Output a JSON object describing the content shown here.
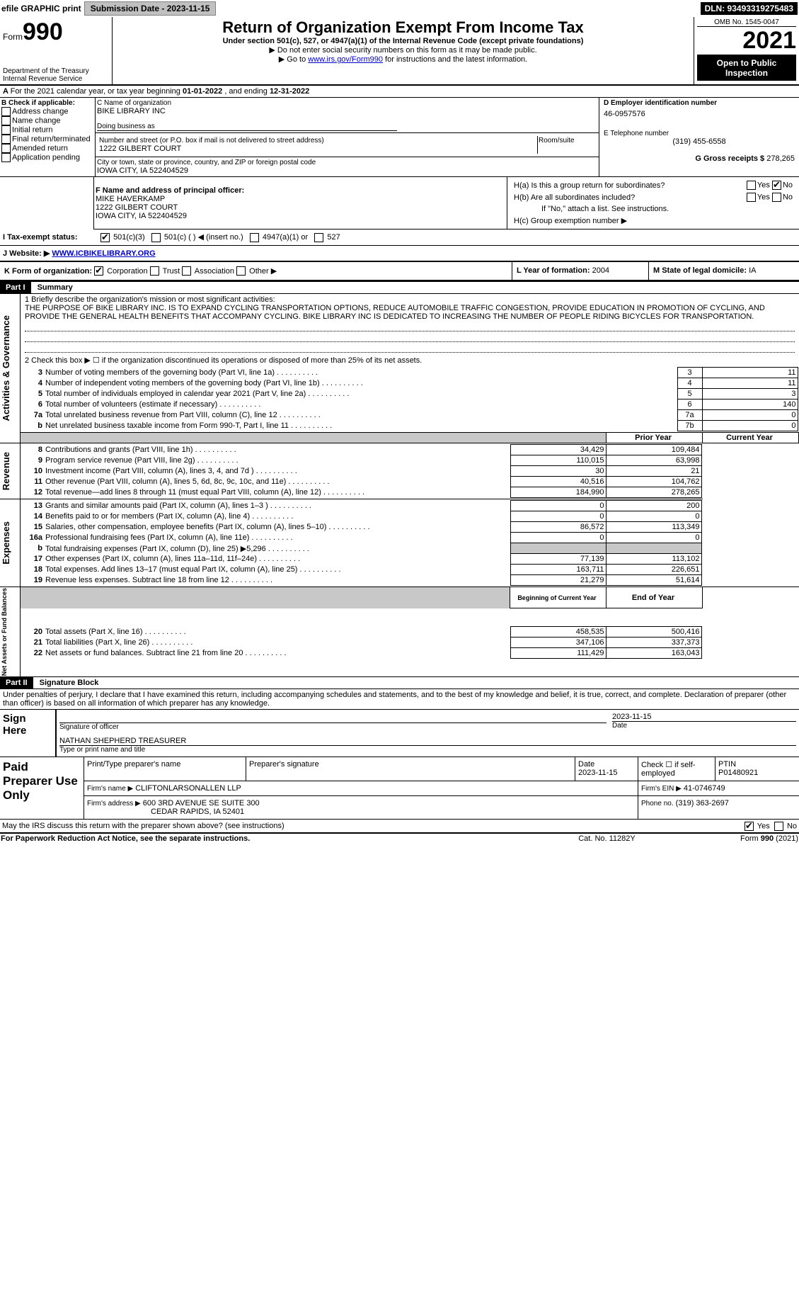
{
  "top": {
    "efile": "efile GRAPHIC print",
    "submission_label": "Submission Date - 2023-11-15",
    "dln_label": "DLN: 93493319275483"
  },
  "header": {
    "form_word": "Form",
    "form_num": "990",
    "title": "Return of Organization Exempt From Income Tax",
    "subtitle": "Under section 501(c), 527, or 4947(a)(1) of the Internal Revenue Code (except private foundations)",
    "note1": "▶ Do not enter social security numbers on this form as it may be made public.",
    "note2_pre": "▶ Go to ",
    "note2_link": "www.irs.gov/Form990",
    "note2_post": " for instructions and the latest information.",
    "dept": "Department of the Treasury",
    "irs": "Internal Revenue Service",
    "omb": "OMB No. 1545-0047",
    "year": "2021",
    "open": "Open to Public Inspection"
  },
  "a_line": {
    "pre": "For the 2021 calendar year, or tax year beginning ",
    "begin": "01-01-2022",
    "mid": " , and ending ",
    "end": "12-31-2022"
  },
  "b": {
    "label": "B Check if applicable:",
    "items": [
      "Address change",
      "Name change",
      "Initial return",
      "Final return/terminated",
      "Amended return",
      "Application pending"
    ]
  },
  "c": {
    "name_label": "C Name of organization",
    "name_val": "BIKE LIBRARY INC",
    "dba_label": "Doing business as",
    "addr_label": "Number and street (or P.O. box if mail is not delivered to street address)",
    "room_label": "Room/suite",
    "addr_val": "1222 GILBERT COURT",
    "city_label": "City or town, state or province, country, and ZIP or foreign postal code",
    "city_val": "IOWA CITY, IA  522404529"
  },
  "d": {
    "label": "D Employer identification number",
    "val": "46-0957576"
  },
  "e": {
    "label": "E Telephone number",
    "val": "(319) 455-6558"
  },
  "g": {
    "label": "G Gross receipts $",
    "val": "278,265"
  },
  "f": {
    "label": "F Name and address of principal officer:",
    "name": "MIKE HAVERKAMP",
    "addr1": "1222 GILBERT COURT",
    "addr2": "IOWA CITY, IA  522404529"
  },
  "h": {
    "a": "H(a)  Is this a group return for subordinates?",
    "b": "H(b)  Are all subordinates included?",
    "b_note": "If \"No,\" attach a list. See instructions.",
    "c": "H(c)  Group exemption number ▶",
    "yes": "Yes",
    "no": "No"
  },
  "i": {
    "label": "I Tax-exempt status:",
    "opt1": "501(c)(3)",
    "opt2": "501(c) ( ) ◀ (insert no.)",
    "opt3": "4947(a)(1) or",
    "opt4": "527"
  },
  "j": {
    "label": "J    Website: ▶",
    "val": "WWW.ICBIKELIBRARY.ORG"
  },
  "k": {
    "label": "K Form of organization:",
    "o1": "Corporation",
    "o2": "Trust",
    "o3": "Association",
    "o4": "Other ▶"
  },
  "l": {
    "label": "L Year of formation:",
    "val": "2004"
  },
  "m": {
    "label": "M State of legal domicile:",
    "val": "IA"
  },
  "part1": {
    "tag": "Part I",
    "title": "Summary",
    "q1": "1 Briefly describe the organization's mission or most significant activities:",
    "mission": "THE PURPOSE OF BIKE LIBRARY INC. IS TO EXPAND CYCLING TRANSPORTATION OPTIONS, REDUCE AUTOMOBILE TRAFFIC CONGESTION, PROVIDE EDUCATION IN PROMOTION OF CYCLING, AND PROVIDE THE GENERAL HEALTH BENEFITS THAT ACCOMPANY CYCLING. BIKE LIBRARY INC IS DEDICATED TO INCREASING THE NUMBER OF PEOPLE RIDING BICYCLES FOR TRANSPORTATION.",
    "q2": "2  Check this box ▶ ☐ if the organization discontinued its operations or disposed of more than 25% of its net assets.",
    "side1": "Activities & Governance",
    "rows_ag": [
      {
        "n": "3",
        "t": "Number of voting members of the governing body (Part VI, line 1a)",
        "b": "3",
        "v": "11"
      },
      {
        "n": "4",
        "t": "Number of independent voting members of the governing body (Part VI, line 1b)",
        "b": "4",
        "v": "11"
      },
      {
        "n": "5",
        "t": "Total number of individuals employed in calendar year 2021 (Part V, line 2a)",
        "b": "5",
        "v": "3"
      },
      {
        "n": "6",
        "t": "Total number of volunteers (estimate if necessary)",
        "b": "6",
        "v": "140"
      },
      {
        "n": "7a",
        "t": "Total unrelated business revenue from Part VIII, column (C), line 12",
        "b": "7a",
        "v": "0"
      },
      {
        "n": "b",
        "t": "Net unrelated business taxable income from Form 990-T, Part I, line 11",
        "b": "7b",
        "v": "0"
      }
    ],
    "col_prior": "Prior Year",
    "col_curr": "Current Year",
    "side2": "Revenue",
    "rows_rev": [
      {
        "n": "8",
        "t": "Contributions and grants (Part VIII, line 1h)",
        "p": "34,429",
        "c": "109,484"
      },
      {
        "n": "9",
        "t": "Program service revenue (Part VIII, line 2g)",
        "p": "110,015",
        "c": "63,998"
      },
      {
        "n": "10",
        "t": "Investment income (Part VIII, column (A), lines 3, 4, and 7d )",
        "p": "30",
        "c": "21"
      },
      {
        "n": "11",
        "t": "Other revenue (Part VIII, column (A), lines 5, 6d, 8c, 9c, 10c, and 11e)",
        "p": "40,516",
        "c": "104,762"
      },
      {
        "n": "12",
        "t": "Total revenue—add lines 8 through 11 (must equal Part VIII, column (A), line 12)",
        "p": "184,990",
        "c": "278,265"
      }
    ],
    "side3": "Expenses",
    "rows_exp": [
      {
        "n": "13",
        "t": "Grants and similar amounts paid (Part IX, column (A), lines 1–3 )",
        "p": "0",
        "c": "200"
      },
      {
        "n": "14",
        "t": "Benefits paid to or for members (Part IX, column (A), line 4)",
        "p": "0",
        "c": "0"
      },
      {
        "n": "15",
        "t": "Salaries, other compensation, employee benefits (Part IX, column (A), lines 5–10)",
        "p": "86,572",
        "c": "113,349"
      },
      {
        "n": "16a",
        "t": "Professional fundraising fees (Part IX, column (A), line 11e)",
        "p": "0",
        "c": "0"
      },
      {
        "n": "b",
        "t": "Total fundraising expenses (Part IX, column (D), line 25) ▶5,296",
        "p": "",
        "c": "",
        "grey": true
      },
      {
        "n": "17",
        "t": "Other expenses (Part IX, column (A), lines 11a–11d, 11f–24e)",
        "p": "77,139",
        "c": "113,102"
      },
      {
        "n": "18",
        "t": "Total expenses. Add lines 13–17 (must equal Part IX, column (A), line 25)",
        "p": "163,711",
        "c": "226,651"
      },
      {
        "n": "19",
        "t": "Revenue less expenses. Subtract line 18 from line 12",
        "p": "21,279",
        "c": "51,614"
      }
    ],
    "col_beg": "Beginning of Current Year",
    "col_end": "End of Year",
    "side4": "Net Assets or Fund Balances",
    "rows_net": [
      {
        "n": "20",
        "t": "Total assets (Part X, line 16)",
        "p": "458,535",
        "c": "500,416"
      },
      {
        "n": "21",
        "t": "Total liabilities (Part X, line 26)",
        "p": "347,106",
        "c": "337,373"
      },
      {
        "n": "22",
        "t": "Net assets or fund balances. Subtract line 21 from line 20",
        "p": "111,429",
        "c": "163,043"
      }
    ]
  },
  "part2": {
    "tag": "Part II",
    "title": "Signature Block",
    "decl": "Under penalties of perjury, I declare that I have examined this return, including accompanying schedules and statements, and to the best of my knowledge and belief, it is true, correct, and complete. Declaration of preparer (other than officer) is based on all information of which preparer has any knowledge.",
    "sign_here": "Sign Here",
    "sig_officer": "Signature of officer",
    "sig_date_lbl": "Date",
    "sig_date": "2023-11-15",
    "name_title": "NATHAN SHEPHERD  TREASURER",
    "name_lbl": "Type or print name and title",
    "paid": "Paid Preparer Use Only",
    "pt_name_lbl": "Print/Type preparer's name",
    "pt_sig_lbl": "Preparer's signature",
    "pt_date_lbl": "Date",
    "pt_date": "2023-11-15",
    "check_se": "Check ☐ if self-employed",
    "ptin_lbl": "PTIN",
    "ptin": "P01480921",
    "firm_name_lbl": "Firm's name  ▶",
    "firm_name": "CLIFTONLARSONALLEN LLP",
    "firm_ein_lbl": "Firm's EIN ▶",
    "firm_ein": "41-0746749",
    "firm_addr_lbl": "Firm's address ▶",
    "firm_addr1": "600 3RD AVENUE SE SUITE 300",
    "firm_addr2": "CEDAR RAPIDS, IA  52401",
    "phone_lbl": "Phone no.",
    "phone": "(319) 363-2697",
    "may": "May the IRS discuss this return with the preparer shown above? (see instructions)",
    "yes": "Yes",
    "no": "No"
  },
  "footer": {
    "left": "For Paperwork Reduction Act Notice, see the separate instructions.",
    "mid": "Cat. No. 11282Y",
    "right": "Form 990 (2021)"
  }
}
